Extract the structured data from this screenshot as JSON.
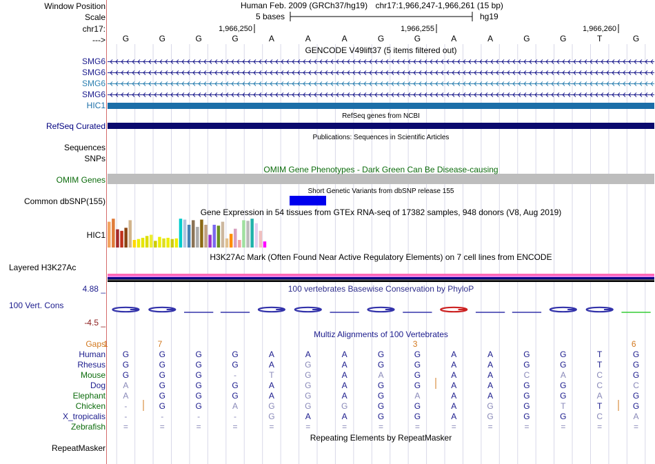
{
  "header": {
    "window_position_label": "Window Position",
    "assembly": "Human Feb. 2009 (GRCh37/hg19)",
    "position": "chr17:1,966,247-1,966,261 (15 bp)",
    "scale_label": "Scale",
    "scale_text": "5 bases",
    "db": "hg19",
    "chrom_label": "chr17:",
    "ticks": [
      "1,966,250",
      "1,966,255",
      "1,966,260"
    ],
    "strand_label": "--->"
  },
  "bases": [
    "G",
    "G",
    "G",
    "G",
    "A",
    "A",
    "A",
    "G",
    "G",
    "A",
    "A",
    "G",
    "G",
    "T",
    "G"
  ],
  "gencode": {
    "title": "GENCODE V49lift37 (5 items filtered out)",
    "items": [
      {
        "label": "SMG6",
        "color": "#1a1a8c"
      },
      {
        "label": "SMG6",
        "color": "#1a1a8c"
      },
      {
        "label": "SMG6",
        "color": "#2a7fb0"
      },
      {
        "label": "SMG6",
        "color": "#1a1a8c"
      },
      {
        "label": "HIC1",
        "color": "#1b6ea8"
      }
    ]
  },
  "refseq": {
    "title": "RefSeq genes from NCBI",
    "label": "RefSeq Curated",
    "color": "#0a0a6e"
  },
  "publications": {
    "title": "Publications: Sequences in Scientific Articles",
    "label": "Sequences"
  },
  "snps_label": "SNPs",
  "omim": {
    "title": "OMIM Gene Phenotypes - Dark Green Can Be Disease-causing",
    "label": "OMIM Genes",
    "color": "#0b6b0b"
  },
  "dbsnp": {
    "title": "Short Genetic Variants from dbSNP release 155",
    "label": "Common dbSNP(155)",
    "color": "#0000ee"
  },
  "gtex": {
    "title": "Gene Expression in 54 tissues from GTEx RNA-seq of 17382 samples, 948 donors (V8, Aug 2019)",
    "label": "HIC1",
    "colors": [
      "#f4a460",
      "#e07b39",
      "#a52a2a",
      "#c0301a",
      "#8b4513",
      "#d2b48c",
      "#ffd700",
      "#eeee00",
      "#e6e600",
      "#dddd00",
      "#eeee33",
      "#cccc00",
      "#eeee00",
      "#dddd22",
      "#eeee00",
      "#cccc11",
      "#eeee00",
      "#00cccc",
      "#b0c4de",
      "#4682b4",
      "#8b7355",
      "#aaaaaa",
      "#8b6914",
      "#c0a080",
      "#9932cc",
      "#7b68ee",
      "#6b8e23",
      "#cdb79e",
      "#e0c090",
      "#ff8c00",
      "#d8a0c0",
      "#f0a0a0",
      "#a0e0a0",
      "#bbbbbb",
      "#20b2aa",
      "#e0d0f0",
      "#f0c0c0",
      "#ff00ff"
    ],
    "values": [
      0.85,
      0.95,
      0.6,
      0.55,
      0.65,
      0.9,
      0.25,
      0.28,
      0.32,
      0.38,
      0.42,
      0.22,
      0.35,
      0.3,
      0.32,
      0.28,
      0.3,
      0.95,
      0.92,
      0.75,
      0.9,
      0.68,
      0.92,
      0.75,
      0.42,
      0.75,
      0.72,
      0.85,
      0.3,
      0.45,
      0.62,
      0.25,
      0.9,
      0.88,
      0.95,
      0.8,
      0.55,
      0.2
    ]
  },
  "h3k27ac": {
    "title": "H3K27Ac Mark (Often Found Near Active Regulatory Elements) on 7 cell lines from ENCODE",
    "label": "Layered H3K27Ac"
  },
  "phylop": {
    "title": "100 vertebrates Basewise Conservation by PhyloP",
    "label": "100 Vert. Cons",
    "ymax": "4.88 _",
    "ymin": "-4.5 _",
    "letters": [
      "G",
      "G",
      "",
      "",
      "G",
      "G",
      "",
      "G",
      "",
      "A",
      "",
      "",
      "G",
      "G",
      ""
    ],
    "colors": [
      "#3333aa",
      "#3333aa",
      "#3333aa",
      "#3333aa",
      "#3333aa",
      "#3333aa",
      "#3333aa",
      "#3333aa",
      "#3333aa",
      "#cc2222",
      "#3333aa",
      "#3333aa",
      "#3333aa",
      "#3333aa",
      "#33cc33"
    ]
  },
  "multiz": {
    "title": "Multiz Alignments of 100 Vertebrates",
    "gaps_label": "Gaps",
    "gap_counts": [
      {
        "col": 0,
        "text": "1"
      },
      {
        "col": 1,
        "text": "7"
      },
      {
        "col": 8,
        "text": "3"
      },
      {
        "col": 14,
        "text": "6"
      }
    ],
    "species": [
      {
        "name": "Human",
        "color": "#1a1a8c",
        "row": [
          "G",
          "G",
          "G",
          "G",
          "A",
          "A",
          "A",
          "G",
          "G",
          "A",
          "A",
          "G",
          "G",
          "T",
          "G"
        ],
        "faded": [
          false,
          false,
          false,
          false,
          false,
          false,
          false,
          false,
          false,
          false,
          false,
          false,
          false,
          false,
          false
        ]
      },
      {
        "name": "Rhesus",
        "color": "#1a1a8c",
        "row": [
          "G",
          "G",
          "G",
          "G",
          "A",
          "G",
          "A",
          "G",
          "G",
          "A",
          "A",
          "G",
          "G",
          "T",
          "G"
        ],
        "faded": [
          false,
          false,
          false,
          false,
          false,
          true,
          false,
          false,
          false,
          false,
          false,
          false,
          false,
          false,
          false
        ]
      },
      {
        "name": "Mouse",
        "color": "#0b6b0b",
        "row": [
          "G",
          "G",
          "G",
          "-",
          "T",
          "G",
          "A",
          "A",
          "G",
          "A",
          "A",
          "C",
          "A",
          "C",
          "G"
        ],
        "faded": [
          false,
          false,
          false,
          true,
          true,
          true,
          false,
          true,
          false,
          false,
          false,
          true,
          true,
          true,
          false
        ]
      },
      {
        "name": "Dog",
        "color": "#1a1a8c",
        "row": [
          "A",
          "G",
          "G",
          "G",
          "A",
          "G",
          "A",
          "G",
          "G",
          "A",
          "A",
          "G",
          "G",
          "C",
          "C"
        ],
        "faded": [
          true,
          false,
          false,
          false,
          false,
          true,
          false,
          false,
          false,
          false,
          false,
          false,
          false,
          true,
          true
        ]
      },
      {
        "name": "Elephant",
        "color": "#0b6b0b",
        "row": [
          "A",
          "G",
          "G",
          "G",
          "A",
          "G",
          "A",
          "G",
          "A",
          "A",
          "A",
          "G",
          "G",
          "A",
          "G"
        ],
        "faded": [
          true,
          false,
          false,
          false,
          false,
          true,
          false,
          false,
          true,
          false,
          false,
          false,
          false,
          true,
          false
        ]
      },
      {
        "name": "Chicken",
        "color": "#0b6b0b",
        "row": [
          "-",
          "G",
          "G",
          "A",
          "G",
          "G",
          "G",
          "G",
          "G",
          "A",
          "G",
          "G",
          "T",
          "T",
          "G"
        ],
        "faded": [
          true,
          false,
          false,
          true,
          true,
          true,
          true,
          false,
          false,
          false,
          true,
          false,
          true,
          false,
          false
        ]
      },
      {
        "name": "X_tropicalis",
        "color": "#1a1a8c",
        "row": [
          "-",
          "-",
          "-",
          "-",
          "G",
          "A",
          "A",
          "G",
          "G",
          "A",
          "G",
          "G",
          "G",
          "C",
          "A"
        ],
        "faded": [
          true,
          true,
          true,
          true,
          true,
          false,
          false,
          false,
          false,
          false,
          true,
          false,
          false,
          true,
          true
        ]
      },
      {
        "name": "Zebrafish",
        "color": "#0b6b0b",
        "row": [
          "=",
          "=",
          "=",
          "=",
          "=",
          "=",
          "=",
          "=",
          "=",
          "=",
          "=",
          "=",
          "=",
          "=",
          "="
        ],
        "faded": [
          true,
          true,
          true,
          true,
          true,
          true,
          true,
          true,
          true,
          true,
          true,
          true,
          true,
          true,
          true
        ]
      }
    ]
  },
  "repeatmasker": {
    "title": "Repeating Elements by RepeatMasker",
    "label": "RepeatMasker"
  }
}
